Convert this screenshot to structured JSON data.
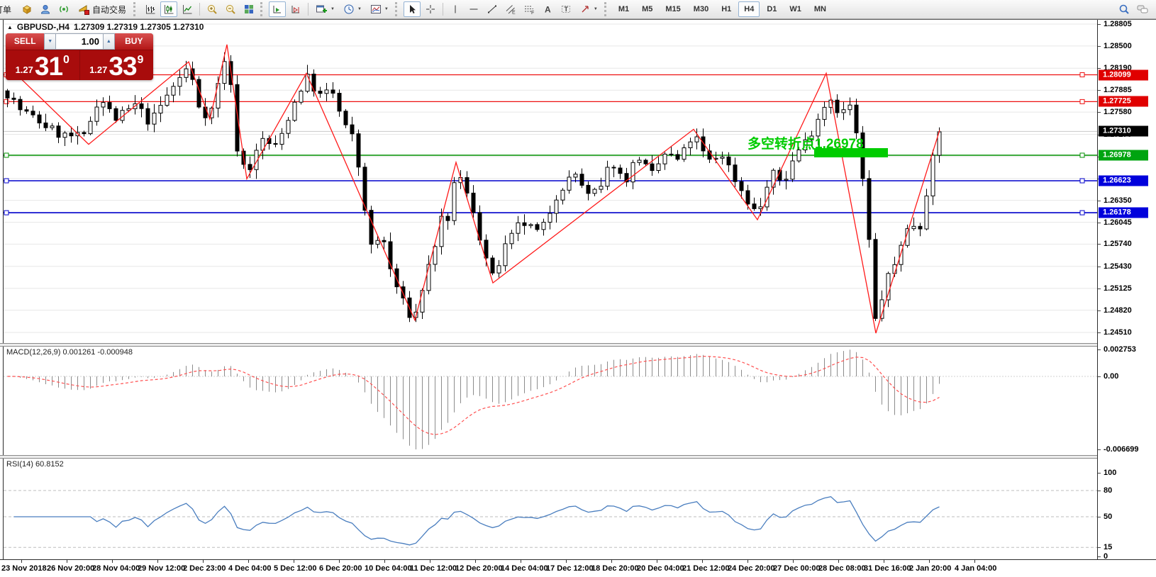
{
  "toolbar": {
    "order_label": "订单",
    "autotrade_label": "自动交易",
    "glyphs": {
      "e": "E",
      "f": "F",
      "a": "A",
      "t": "T"
    },
    "timeframes": [
      "M1",
      "M5",
      "M15",
      "M30",
      "H1",
      "H4",
      "D1",
      "W1",
      "MN"
    ],
    "active_timeframe": "H4"
  },
  "symbol_header": {
    "title": "GBPUSD-,H4",
    "quotes": "1.27309 1.27319 1.27305 1.27310"
  },
  "trade_panel": {
    "sell_label": "SELL",
    "buy_label": "BUY",
    "volume": "1.00",
    "sell_price_small": "1.27",
    "sell_price_big": "31",
    "sell_price_sup": "0",
    "buy_price_small": "1.27",
    "buy_price_big": "33",
    "buy_price_sup": "9"
  },
  "annotation": {
    "text": "多空转折点1.26978",
    "color": "#00cc00"
  },
  "macd": {
    "label": "MACD(12,26,9) 0.001261 -0.000948",
    "axis_max": "0.002753",
    "axis_zero": "0.00",
    "axis_min": "-0.006699"
  },
  "rsi": {
    "label": "RSI(14) 60.8152",
    "axis_labels": [
      100,
      80,
      50,
      15,
      0
    ],
    "level_lines": [
      80,
      50,
      15
    ],
    "last_value": 60.8152
  },
  "time_axis": {
    "labels": [
      "23 Nov 2018",
      "26 Nov 20:00",
      "28 Nov 04:00",
      "29 Nov 12:00",
      "2 Dec 23:00",
      "4 Dec 04:00",
      "5 Dec 12:00",
      "6 Dec 20:00",
      "10 Dec 04:00",
      "11 Dec 12:00",
      "12 Dec 20:00",
      "14 Dec 04:00",
      "17 Dec 12:00",
      "18 Dec 20:00",
      "20 Dec 04:00",
      "21 Dec 12:00",
      "24 Dec 20:00",
      "27 Dec 00:00",
      "28 Dec 08:00",
      "31 Dec 16:00",
      "2 Jan 20:00",
      "4 Jan 04:00"
    ]
  },
  "chart_data": {
    "type": "candlestick",
    "symbol": "GBPUSD-",
    "timeframe": "H4",
    "current_bar_ohlc": [
      1.27309,
      1.27319,
      1.27305,
      1.2731
    ],
    "ylim": [
      1.2451,
      1.28805
    ],
    "price_ticks": [
      1.28805,
      1.285,
      1.2819,
      1.27885,
      1.2758,
      1.2727,
      1.2696,
      1.26655,
      1.2635,
      1.26045,
      1.2574,
      1.2543,
      1.25125,
      1.2482,
      1.2451
    ],
    "levels": [
      {
        "price": 1.28099,
        "color": "#ee1111",
        "badge": "#e00000"
      },
      {
        "price": 1.27725,
        "color": "#ee1111",
        "badge": "#e00000"
      },
      {
        "price": 1.26978,
        "color": "#008f00",
        "badge": "#00a410"
      },
      {
        "price": 1.26623,
        "color": "#0000cc",
        "badge": "#0000dc"
      },
      {
        "price": 1.26178,
        "color": "#0000cc",
        "badge": "#0000dc"
      }
    ],
    "current_price": {
      "price": 1.2731,
      "badge": "#000000"
    },
    "zigzag_points": [
      [
        8,
        1.2825
      ],
      [
        125,
        1.2713
      ],
      [
        266,
        1.2828
      ],
      [
        296,
        1.2748
      ],
      [
        320,
        1.2852
      ],
      [
        348,
        1.2665
      ],
      [
        432,
        1.2812
      ],
      [
        585,
        1.2468
      ],
      [
        643,
        1.2688
      ],
      [
        695,
        1.252
      ],
      [
        978,
        1.2734
      ],
      [
        1068,
        1.2608
      ],
      [
        1165,
        1.2812
      ],
      [
        1235,
        1.245
      ],
      [
        1325,
        1.2733
      ]
    ],
    "price_path": [
      [
        6,
        1.279
      ],
      [
        28,
        1.2762
      ],
      [
        55,
        1.2745
      ],
      [
        85,
        1.2726
      ],
      [
        118,
        1.2722
      ],
      [
        140,
        1.278
      ],
      [
        163,
        1.2748
      ],
      [
        192,
        1.2768
      ],
      [
        212,
        1.2742
      ],
      [
        238,
        1.2785
      ],
      [
        266,
        1.2822
      ],
      [
        282,
        1.2762
      ],
      [
        296,
        1.2752
      ],
      [
        320,
        1.2845
      ],
      [
        334,
        1.271
      ],
      [
        348,
        1.2672
      ],
      [
        370,
        1.272
      ],
      [
        390,
        1.2708
      ],
      [
        410,
        1.276
      ],
      [
        432,
        1.2808
      ],
      [
        450,
        1.278
      ],
      [
        468,
        1.2788
      ],
      [
        485,
        1.274
      ],
      [
        500,
        1.2718
      ],
      [
        512,
        1.264
      ],
      [
        525,
        1.256
      ],
      [
        538,
        1.2592
      ],
      [
        550,
        1.254
      ],
      [
        562,
        1.2508
      ],
      [
        575,
        1.2478
      ],
      [
        585,
        1.2472
      ],
      [
        598,
        1.2522
      ],
      [
        610,
        1.256
      ],
      [
        622,
        1.2608
      ],
      [
        630,
        1.259
      ],
      [
        643,
        1.268
      ],
      [
        655,
        1.265
      ],
      [
        668,
        1.262
      ],
      [
        680,
        1.257
      ],
      [
        695,
        1.2526
      ],
      [
        712,
        1.2568
      ],
      [
        735,
        1.2605
      ],
      [
        762,
        1.2588
      ],
      [
        788,
        1.265
      ],
      [
        812,
        1.2672
      ],
      [
        830,
        1.264
      ],
      [
        848,
        1.2652
      ],
      [
        862,
        1.2692
      ],
      [
        880,
        1.266
      ],
      [
        900,
        1.2698
      ],
      [
        918,
        1.2668
      ],
      [
        938,
        1.27
      ],
      [
        958,
        1.269
      ],
      [
        978,
        1.2728
      ],
      [
        998,
        1.2688
      ],
      [
        1018,
        1.27
      ],
      [
        1040,
        1.2658
      ],
      [
        1068,
        1.2614
      ],
      [
        1088,
        1.2672
      ],
      [
        1105,
        1.266
      ],
      [
        1122,
        1.27
      ],
      [
        1140,
        1.2722
      ],
      [
        1158,
        1.276
      ],
      [
        1170,
        1.278
      ],
      [
        1185,
        1.2755
      ],
      [
        1200,
        1.2768
      ],
      [
        1212,
        1.27
      ],
      [
        1222,
        1.262
      ],
      [
        1235,
        1.2462
      ],
      [
        1248,
        1.252
      ],
      [
        1260,
        1.254
      ],
      [
        1272,
        1.2582
      ],
      [
        1285,
        1.2602
      ],
      [
        1298,
        1.26
      ],
      [
        1310,
        1.2668
      ],
      [
        1325,
        1.2731
      ]
    ],
    "candles": {
      "count": 147,
      "start_x": 8,
      "spacing": 9,
      "width": 5
    },
    "highlight_rect": {
      "x": 1148,
      "y": 208,
      "w": 104,
      "h": 13,
      "color": "#00cc00"
    },
    "indicator_colors": {
      "macd_hist": "#8c8c8c",
      "macd_signal": "#ff5050",
      "rsi_line": "#4a7ebf"
    }
  }
}
